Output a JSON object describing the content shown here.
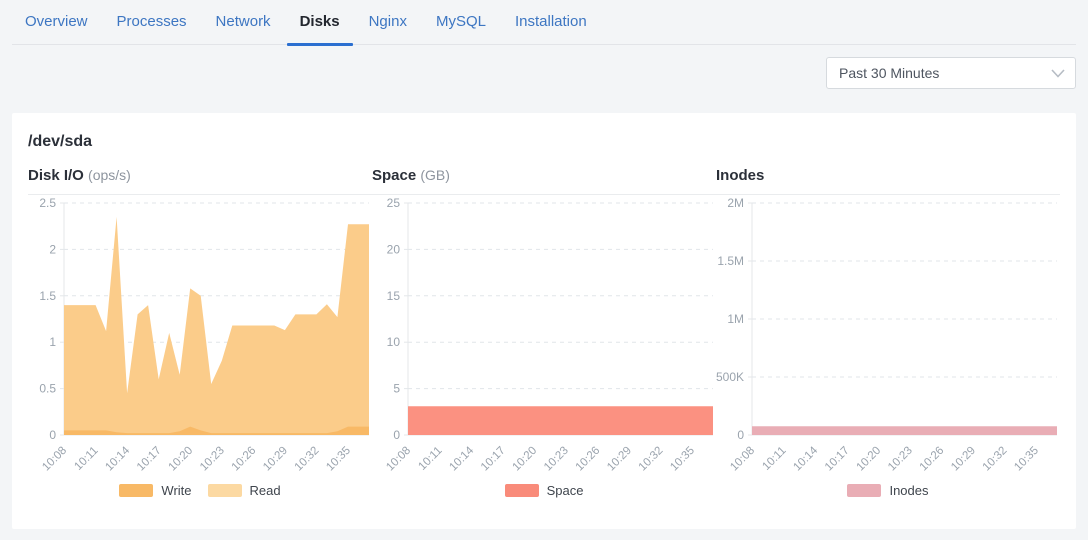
{
  "tabs": [
    {
      "label": "Overview",
      "active": false
    },
    {
      "label": "Processes",
      "active": false
    },
    {
      "label": "Network",
      "active": false
    },
    {
      "label": "Disks",
      "active": true
    },
    {
      "label": "Nginx",
      "active": false
    },
    {
      "label": "MySQL",
      "active": false
    },
    {
      "label": "Installation",
      "active": false
    }
  ],
  "toolbar": {
    "timeframe_select": {
      "value": "Past 30 Minutes"
    }
  },
  "panel": {
    "title": "/dev/sda"
  },
  "colors": {
    "tab_text": "#3d76c2",
    "tab_active_text": "#23272f",
    "tab_active_underline": "#2b6fd0",
    "page_bg": "#f3f5f7",
    "card_bg": "#ffffff",
    "axis_text": "#9aa3ad",
    "gridline": "#e1e5e9",
    "axis_line": "#e4e7ea",
    "divider": "#eaecee"
  },
  "chart_data": [
    {
      "id": "disk-io",
      "type": "area",
      "title": "Disk I/O",
      "unit": "(ops/s)",
      "ylim": [
        0,
        2.5
      ],
      "y_tick_values": [
        0,
        0.5,
        1,
        1.5,
        2,
        2.5
      ],
      "y_tick_labels": [
        "0",
        "0.5",
        "1",
        "1.5",
        "2",
        "2.5"
      ],
      "x_tick_labels": [
        "10:08",
        "10:11",
        "10:14",
        "10:17",
        "10:20",
        "10:23",
        "10:26",
        "10:29",
        "10:32",
        "10:35"
      ],
      "x_tick_every": 3,
      "grid": "dashed",
      "legend_position": "bottom",
      "series": [
        {
          "name": "Write",
          "color": "#f8b966",
          "values": [
            0.05,
            0.05,
            0.05,
            0.05,
            0.05,
            0.03,
            0.02,
            0.02,
            0.02,
            0.02,
            0.02,
            0.04,
            0.09,
            0.05,
            0.02,
            0.02,
            0.02,
            0.02,
            0.02,
            0.02,
            0.02,
            0.02,
            0.02,
            0.02,
            0.02,
            0.02,
            0.04,
            0.09,
            0.09,
            0.09
          ]
        },
        {
          "name": "Read",
          "color": "#fbcc8a",
          "legend_color": "#fcd9a2",
          "values": [
            1.4,
            1.4,
            1.4,
            1.4,
            1.12,
            2.35,
            0.45,
            1.3,
            1.4,
            0.6,
            1.1,
            0.65,
            1.58,
            1.5,
            0.55,
            0.8,
            1.18,
            1.18,
            1.18,
            1.18,
            1.18,
            1.13,
            1.3,
            1.3,
            1.3,
            1.41,
            1.27,
            2.27,
            2.27,
            2.27
          ]
        }
      ]
    },
    {
      "id": "space",
      "type": "area",
      "title": "Space",
      "unit": "(GB)",
      "ylim": [
        0,
        25
      ],
      "y_tick_values": [
        0,
        5,
        10,
        15,
        20,
        25
      ],
      "y_tick_labels": [
        "0",
        "5",
        "10",
        "15",
        "20",
        "25"
      ],
      "x_tick_labels": [
        "10:08",
        "10:11",
        "10:14",
        "10:17",
        "10:20",
        "10:23",
        "10:26",
        "10:29",
        "10:32",
        "10:35"
      ],
      "x_tick_every": 3,
      "grid": "dashed",
      "legend_position": "bottom",
      "series": [
        {
          "name": "Space",
          "color": "#fb9181",
          "legend_color": "#f98b7a",
          "values": [
            3.1,
            3.1,
            3.1,
            3.1,
            3.1,
            3.1,
            3.1,
            3.1,
            3.1,
            3.1,
            3.1,
            3.1,
            3.1,
            3.1,
            3.1,
            3.1,
            3.1,
            3.1,
            3.1,
            3.1,
            3.1,
            3.1,
            3.1,
            3.1,
            3.1,
            3.1,
            3.1,
            3.1,
            3.1,
            3.1
          ]
        }
      ]
    },
    {
      "id": "inodes",
      "type": "area",
      "title": "Inodes",
      "unit": "",
      "ylim": [
        0,
        2000000
      ],
      "y_tick_values": [
        0,
        500000,
        1000000,
        1500000,
        2000000
      ],
      "y_tick_labels": [
        "0",
        "500K",
        "1M",
        "1.5M",
        "2M"
      ],
      "x_tick_labels": [
        "10:08",
        "10:11",
        "10:14",
        "10:17",
        "10:20",
        "10:23",
        "10:26",
        "10:29",
        "10:32",
        "10:35"
      ],
      "x_tick_every": 3,
      "grid": "dashed",
      "legend_position": "bottom",
      "series": [
        {
          "name": "Inodes",
          "color": "#e9adb5",
          "values": [
            75000,
            75000,
            75000,
            75000,
            75000,
            75000,
            75000,
            75000,
            75000,
            75000,
            75000,
            75000,
            75000,
            75000,
            75000,
            75000,
            75000,
            75000,
            75000,
            75000,
            75000,
            75000,
            75000,
            75000,
            75000,
            75000,
            75000,
            75000,
            75000,
            75000
          ]
        }
      ]
    }
  ]
}
